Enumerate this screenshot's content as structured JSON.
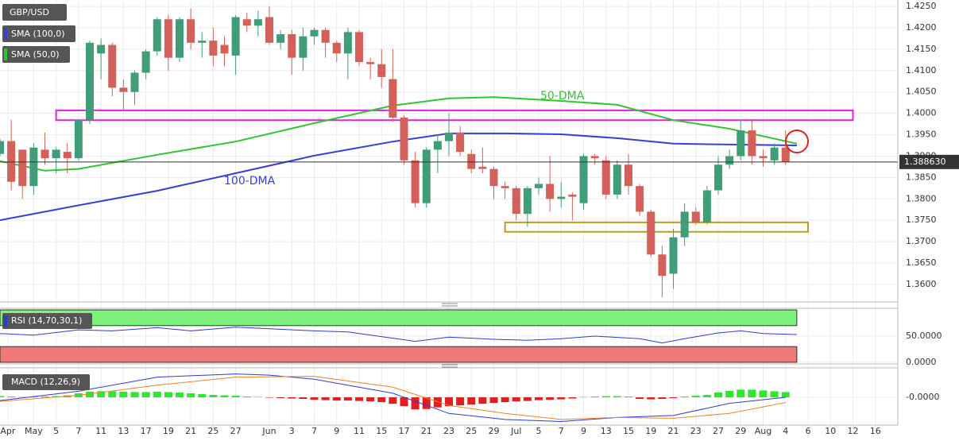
{
  "chart_data": {
    "type": "candlestick",
    "symbol": "GBP/USD",
    "xlim": [
      0,
      80
    ],
    "xticks": [
      {
        "value": 0.7,
        "label": "Apr"
      },
      {
        "value": 3,
        "label": "May"
      },
      {
        "value": 5,
        "label": "5"
      },
      {
        "value": 7,
        "label": "7"
      },
      {
        "value": 9,
        "label": "11"
      },
      {
        "value": 11,
        "label": "13"
      },
      {
        "value": 13,
        "label": "17"
      },
      {
        "value": 15,
        "label": "19"
      },
      {
        "value": 17,
        "label": "21"
      },
      {
        "value": 19,
        "label": "25"
      },
      {
        "value": 21,
        "label": "27"
      },
      {
        "value": 24,
        "label": "Jun"
      },
      {
        "value": 26,
        "label": "3"
      },
      {
        "value": 28,
        "label": "7"
      },
      {
        "value": 30,
        "label": "9"
      },
      {
        "value": 32,
        "label": "11"
      },
      {
        "value": 34,
        "label": "15"
      },
      {
        "value": 36,
        "label": "17"
      },
      {
        "value": 38,
        "label": "21"
      },
      {
        "value": 40,
        "label": "23"
      },
      {
        "value": 42,
        "label": "25"
      },
      {
        "value": 44,
        "label": "29"
      },
      {
        "value": 46,
        "label": "Jul"
      },
      {
        "value": 48,
        "label": "5"
      },
      {
        "value": 50,
        "label": "7"
      },
      {
        "value": 52,
        "label": "9"
      },
      {
        "value": 54,
        "label": "13"
      },
      {
        "value": 56,
        "label": "15"
      },
      {
        "value": 58,
        "label": "19"
      },
      {
        "value": 60,
        "label": "21"
      },
      {
        "value": 62,
        "label": "23"
      },
      {
        "value": 64,
        "label": "27"
      },
      {
        "value": 66,
        "label": "29"
      },
      {
        "value": 68,
        "label": "Aug"
      },
      {
        "value": 70,
        "label": "4"
      },
      {
        "value": 72,
        "label": "6"
      },
      {
        "value": 74,
        "label": "10"
      },
      {
        "value": 76,
        "label": "12"
      },
      {
        "value": 78,
        "label": "16"
      }
    ],
    "ylim": [
      1.3559,
      1.4265
    ],
    "yticks": [
      {
        "value": 1.425,
        "label": "1.4250"
      },
      {
        "value": 1.42,
        "label": "1.4200"
      },
      {
        "value": 1.415,
        "label": "1.4150"
      },
      {
        "value": 1.41,
        "label": "1.4100"
      },
      {
        "value": 1.405,
        "label": "1.4050"
      },
      {
        "value": 1.4,
        "label": "1.4000"
      },
      {
        "value": 1.395,
        "label": "1.3950"
      },
      {
        "value": 1.39,
        "label": "1.3900"
      },
      {
        "value": 1.385,
        "label": "1.3850"
      },
      {
        "value": 1.38,
        "label": "1.3800"
      },
      {
        "value": 1.375,
        "label": "1.3750"
      },
      {
        "value": 1.37,
        "label": "1.3700"
      },
      {
        "value": 1.365,
        "label": "1.3650"
      },
      {
        "value": 1.36,
        "label": "1.3600"
      }
    ],
    "up_color": "#3f9e77",
    "down_color": "#d4605a",
    "open": [
      1.3905,
      1.3935,
      1.3915,
      1.383,
      1.3915,
      1.3895,
      1.391,
      1.3895,
      1.3985,
      1.414,
      1.416,
      1.406,
      1.405,
      1.4095,
      1.4145,
      1.422,
      1.413,
      1.422,
      1.4165,
      1.417,
      1.416,
      1.4135,
      1.422,
      1.4205,
      1.4225,
      1.4165,
      1.4185,
      1.413,
      1.418,
      1.4195,
      1.4165,
      1.414,
      1.419,
      1.412,
      1.4115,
      1.408,
      1.399,
      1.389,
      1.379,
      1.3915,
      1.3935,
      1.3955,
      1.3905,
      1.3875,
      1.387,
      1.383,
      1.3825,
      1.3765,
      1.3825,
      1.3835,
      1.38,
      1.381,
      1.379,
      1.39,
      1.389,
      1.381,
      1.388,
      1.383,
      1.377,
      1.367,
      1.3625,
      1.371,
      1.377,
      1.3745,
      1.382,
      1.388,
      1.39,
      1.396,
      1.39,
      1.389,
      1.392
    ],
    "high": [
      1.394,
      1.3985,
      1.3915,
      1.393,
      1.3955,
      1.392,
      1.393,
      1.3985,
      1.417,
      1.4175,
      1.4165,
      1.408,
      1.41,
      1.415,
      1.4225,
      1.423,
      1.4225,
      1.4245,
      1.419,
      1.42,
      1.418,
      1.423,
      1.4235,
      1.424,
      1.425,
      1.4195,
      1.4195,
      1.42,
      1.42,
      1.42,
      1.417,
      1.42,
      1.4195,
      1.413,
      1.415,
      1.415,
      1.3995,
      1.391,
      1.392,
      1.395,
      1.4,
      1.397,
      1.3915,
      1.392,
      1.3875,
      1.384,
      1.383,
      1.383,
      1.385,
      1.39,
      1.384,
      1.3815,
      1.3905,
      1.3905,
      1.39,
      1.389,
      1.3905,
      1.3835,
      1.3775,
      1.369,
      1.373,
      1.379,
      1.378,
      1.383,
      1.39,
      1.3915,
      1.3985,
      1.3985,
      1.3915,
      1.393,
      1.396
    ],
    "low": [
      1.39,
      1.382,
      1.38,
      1.381,
      1.388,
      1.386,
      1.386,
      1.389,
      1.3975,
      1.408,
      1.404,
      1.4005,
      1.402,
      1.408,
      1.4135,
      1.41,
      1.412,
      1.415,
      1.413,
      1.411,
      1.411,
      1.409,
      1.419,
      1.418,
      1.416,
      1.415,
      1.409,
      1.41,
      1.416,
      1.413,
      1.412,
      1.408,
      1.411,
      1.408,
      1.406,
      1.398,
      1.388,
      1.378,
      1.378,
      1.386,
      1.39,
      1.39,
      1.386,
      1.386,
      1.38,
      1.38,
      1.375,
      1.3735,
      1.381,
      1.377,
      1.378,
      1.375,
      1.3775,
      1.388,
      1.38,
      1.38,
      1.381,
      1.376,
      1.3665,
      1.357,
      1.359,
      1.369,
      1.374,
      1.374,
      1.381,
      1.387,
      1.389,
      1.388,
      1.3875,
      1.388,
      1.388
    ],
    "close": [
      1.3935,
      1.384,
      1.383,
      1.392,
      1.3895,
      1.3915,
      1.3895,
      1.3985,
      1.4165,
      1.416,
      1.406,
      1.405,
      1.4095,
      1.4145,
      1.422,
      1.413,
      1.422,
      1.4165,
      1.417,
      1.4135,
      1.414,
      1.4225,
      1.4205,
      1.422,
      1.4165,
      1.4185,
      1.413,
      1.418,
      1.4195,
      1.4165,
      1.414,
      1.419,
      1.412,
      1.4115,
      1.4085,
      1.399,
      1.389,
      1.379,
      1.3915,
      1.3935,
      1.3955,
      1.391,
      1.387,
      1.387,
      1.383,
      1.3825,
      1.3765,
      1.3825,
      1.3835,
      1.38,
      1.3805,
      1.3805,
      1.39,
      1.3895,
      1.381,
      1.388,
      1.383,
      1.377,
      1.367,
      1.362,
      1.371,
      1.377,
      1.3745,
      1.382,
      1.388,
      1.39,
      1.396,
      1.39,
      1.3895,
      1.392,
      1.38863
    ],
    "last_price": {
      "value": 1.38863,
      "label": "1.388630"
    },
    "overlays": [
      {
        "name": "SMA (100,0)",
        "label": "100-DMA",
        "color": "#3a3fd6",
        "x": [
          0,
          7,
          14,
          21,
          28,
          35,
          40,
          45,
          50,
          55,
          60,
          65,
          71
        ],
        "values": [
          1.375,
          1.3785,
          1.3819,
          1.386,
          1.3901,
          1.3934,
          1.3953,
          1.3953,
          1.3951,
          1.3942,
          1.3929,
          1.3927,
          1.3925
        ]
      },
      {
        "name": "SMA (50,0)",
        "label": "50-DMA",
        "color": "#2ec82e",
        "x": [
          0,
          4,
          7,
          14,
          21,
          28,
          35,
          40,
          44,
          50,
          55,
          60,
          65,
          71
        ],
        "values": [
          1.3888,
          1.3866,
          1.387,
          1.3903,
          1.3934,
          1.3977,
          1.4018,
          1.4035,
          1.4038,
          1.4029,
          1.402,
          1.3984,
          1.3964,
          1.3929
        ]
      }
    ],
    "zones": [
      {
        "x": [
          5,
          76
        ],
        "y": [
          1.3984,
          1.4007
        ],
        "color": "#e020e0"
      },
      {
        "x": [
          45,
          72
        ],
        "y": [
          1.3723,
          1.3745
        ],
        "color": "#b8a020"
      }
    ],
    "rsi": {
      "name": "RSI (14,70,30,1)",
      "color": "#2d3bd0",
      "ylim": [
        0,
        100
      ],
      "yticks": [
        {
          "value": 50,
          "label": "50.0000"
        },
        {
          "value": 0,
          "label": "0.0000"
        }
      ],
      "levels": [
        70,
        30
      ],
      "x": [
        0,
        3,
        7,
        10,
        14,
        17,
        21,
        24,
        28,
        31,
        35,
        37,
        40,
        44,
        47,
        50,
        53,
        57,
        59,
        61,
        64,
        66,
        68,
        71
      ],
      "values": [
        55,
        52,
        62,
        60,
        66,
        60,
        67,
        64,
        60,
        58,
        46,
        40,
        48,
        44,
        42,
        45,
        50,
        45,
        37,
        45,
        56,
        60,
        55,
        53
      ]
    },
    "macd": {
      "name": "MACD (12,26,9)",
      "ylim": [
        -0.0063,
        0.0069
      ],
      "yticks": [
        {
          "value": 0,
          "label": "-0.0000"
        }
      ],
      "up_color": "#2ee82e",
      "down_color": "#e02020",
      "histogram": [
        0.0003,
        0.0002,
        0.0001,
        0.0001,
        0.0002,
        0.0003,
        0.0005,
        0.001,
        0.0014,
        0.0015,
        0.0015,
        0.0014,
        0.0013,
        0.0013,
        0.0014,
        0.0013,
        0.0012,
        0.001,
        0.0008,
        0.0006,
        0.0005,
        0.0004,
        0.0002,
        0.0001,
        -0.0001,
        -0.0002,
        -0.0003,
        -0.0004,
        -0.0006,
        -0.0007,
        -0.0008,
        -0.0008,
        -0.0009,
        -0.001,
        -0.0012,
        -0.0016,
        -0.0022,
        -0.003,
        -0.0029,
        -0.0025,
        -0.0022,
        -0.002,
        -0.0018,
        -0.0016,
        -0.0014,
        -0.0012,
        -0.001,
        -0.0009,
        -0.0007,
        -0.0006,
        -0.0005,
        -0.0003,
        0.0001,
        0.0002,
        0.0003,
        0.0003,
        0.0002,
        -0.0004,
        -0.0005,
        -0.0004,
        -0.0002,
        0.0002,
        0.0004,
        0.0006,
        0.0012,
        0.0016,
        0.0019,
        0.0019,
        0.0017,
        0.0015,
        0.0013
      ],
      "lines": [
        {
          "color": "#2d3bd0",
          "x": [
            0,
            7,
            14,
            21,
            24,
            28,
            35,
            40,
            45,
            50,
            55,
            60,
            65,
            70
          ],
          "values": [
            -0.0008,
            0.0015,
            0.005,
            0.0058,
            0.0055,
            0.0045,
            0.001,
            -0.004,
            -0.0055,
            -0.006,
            -0.005,
            -0.0045,
            -0.0015,
            0.0
          ]
        },
        {
          "color": "#f0802a",
          "x": [
            0,
            7,
            14,
            21,
            28,
            35,
            40,
            45,
            50,
            55,
            60,
            65,
            70
          ],
          "values": [
            -0.001,
            0.0005,
            0.003,
            0.005,
            0.0052,
            0.0025,
            -0.002,
            -0.004,
            -0.0055,
            -0.005,
            -0.0052,
            -0.004,
            -0.0013
          ]
        }
      ]
    }
  }
}
